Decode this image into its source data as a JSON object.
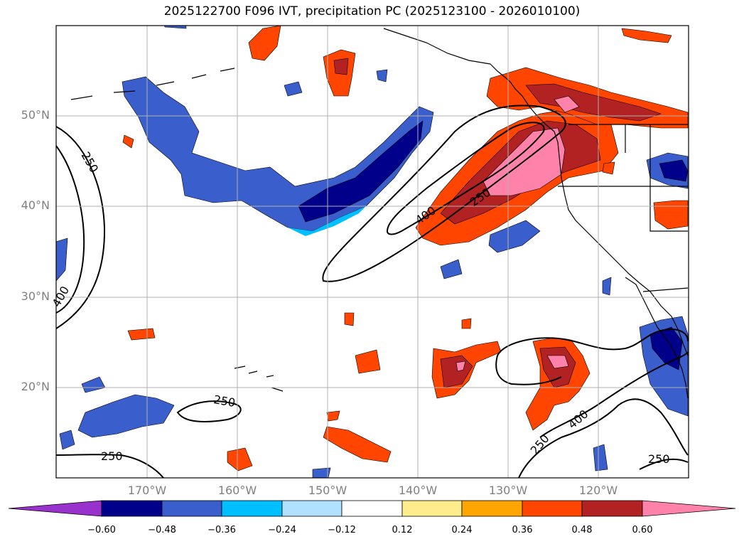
{
  "title": "2025122700 F096 IVT, precipitation PC (2025123100 - 2026010100)",
  "lat_labels": [
    "50°N",
    "40°N",
    "30°N",
    "20°N"
  ],
  "lon_labels": [
    "170°W",
    "160°W",
    "150°W",
    "140°W",
    "130°W",
    "120°W"
  ],
  "contour_labels": [
    "250",
    "400",
    "400",
    "250",
    "250",
    "250",
    "250",
    "400",
    "250"
  ],
  "colorbar": {
    "ticks": [
      "−0.60",
      "−0.48",
      "−0.36",
      "−0.24",
      "−0.12",
      "0.12",
      "0.24",
      "0.36",
      "0.48",
      "0.60"
    ],
    "colors": [
      "#9932cc",
      "#00008b",
      "#3a5fcd",
      "#00bfff",
      "#b0e2ff",
      "#ffffff",
      "#ffec8b",
      "#ffa500",
      "#ff4500",
      "#b22222",
      "#ff82ab"
    ]
  }
}
